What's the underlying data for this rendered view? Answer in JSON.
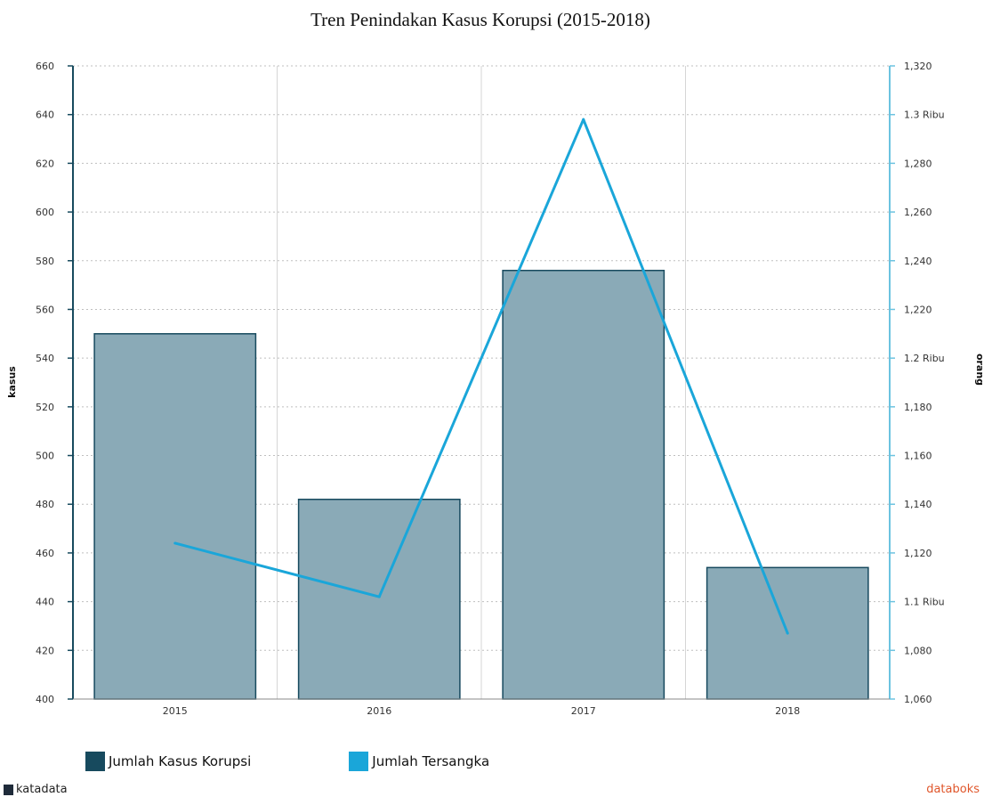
{
  "chart_data": {
    "type": "bar",
    "title": "Tren Penindakan Kasus Korupsi (2015-2018)",
    "categories": [
      "2015",
      "2016",
      "2017",
      "2018"
    ],
    "series": [
      {
        "name": "Jumlah Kasus Korupsi",
        "type": "bar",
        "axis": "left",
        "values": [
          550,
          482,
          576,
          454
        ],
        "color": "#8aaab7",
        "stroke": "#174a5e"
      },
      {
        "name": "Jumlah Tersangka",
        "type": "line",
        "axis": "right",
        "values": [
          1124,
          1102,
          1298,
          1087
        ],
        "color": "#1aa6d9"
      }
    ],
    "left_axis": {
      "label": "kasus",
      "ylim": [
        400,
        660
      ],
      "ticks": [
        "400",
        "420",
        "440",
        "460",
        "480",
        "500",
        "520",
        "540",
        "560",
        "580",
        "600",
        "620",
        "640",
        "660"
      ]
    },
    "right_axis": {
      "label": "orang",
      "ylim": [
        1060,
        1320
      ],
      "ticks": [
        "1,060",
        "1,080",
        "1.1 Ribu",
        "1,120",
        "1,140",
        "1,160",
        "1,180",
        "1.2 Ribu",
        "1,220",
        "1,240",
        "1,260",
        "1,280",
        "1.3 Ribu",
        "1,320"
      ]
    },
    "grid": true,
    "legend_position": "bottom-left"
  },
  "branding": {
    "left": "katadata",
    "right": "databoks"
  }
}
